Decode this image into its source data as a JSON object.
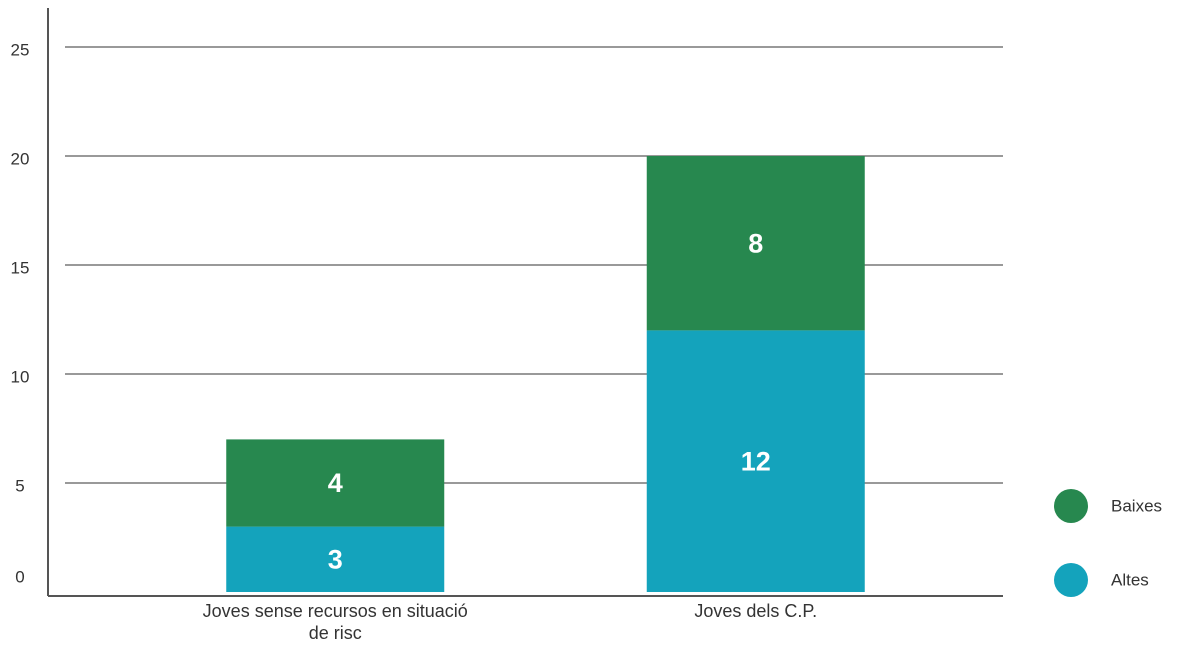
{
  "chart_data": {
    "type": "stacked_bar",
    "categories": [
      "Joves sense recursos en situació de risc",
      "Joves dels C.P."
    ],
    "series": [
      {
        "name": "Altes",
        "color": "#14a3bc",
        "values": [
          3,
          12
        ]
      },
      {
        "name": "Baixes",
        "color": "#27884f",
        "values": [
          4,
          8
        ]
      }
    ],
    "ylim": [
      0,
      25
    ],
    "yticks": [
      0,
      5,
      10,
      15,
      20,
      25
    ],
    "grid": true,
    "legend": "right"
  }
}
